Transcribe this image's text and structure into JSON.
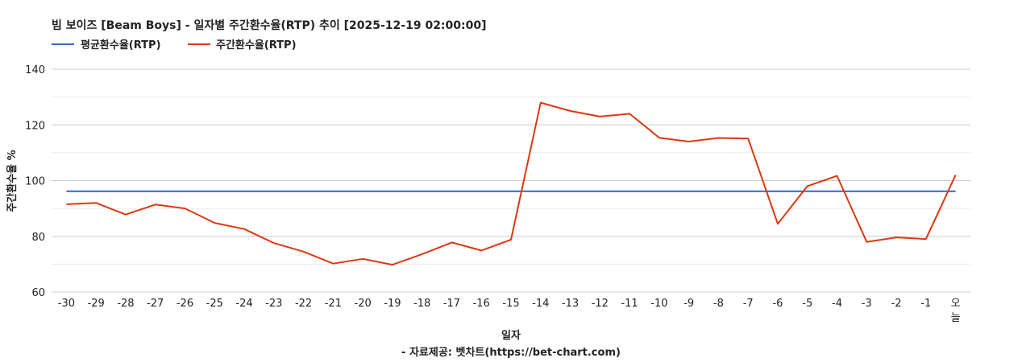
{
  "chart_data": {
    "type": "line",
    "title": "빔 보이즈 [Beam Boys] - 일자별 주간환수율(RTP) 추이 [2025-12-19 02:00:00]",
    "xlabel": "일자",
    "ylabel": "주간환수율 %",
    "footer": "- 자료제공: 벳차트(https://bet-chart.com)",
    "ylim": [
      60,
      140
    ],
    "yticks": [
      60,
      80,
      100,
      120,
      140
    ],
    "grid": true,
    "legend_position": "top-left",
    "categories": [
      "-30",
      "-29",
      "-28",
      "-27",
      "-26",
      "-25",
      "-24",
      "-23",
      "-22",
      "-21",
      "-20",
      "-19",
      "-18",
      "-17",
      "-16",
      "-15",
      "-14",
      "-13",
      "-12",
      "-11",
      "-10",
      "-9",
      "-8",
      "-7",
      "-6",
      "-5",
      "-4",
      "-3",
      "-2",
      "-1",
      "오늘"
    ],
    "series": [
      {
        "name": "평균환수율(RTP)",
        "color": "#3366cc",
        "values": [
          96.2,
          96.2,
          96.2,
          96.2,
          96.2,
          96.2,
          96.2,
          96.2,
          96.2,
          96.2,
          96.2,
          96.2,
          96.2,
          96.2,
          96.2,
          96.2,
          96.2,
          96.2,
          96.2,
          96.2,
          96.2,
          96.2,
          96.2,
          96.2,
          96.2,
          96.2,
          96.2,
          96.2,
          96.2,
          96.2,
          96.2
        ]
      },
      {
        "name": "주간환수율(RTP)",
        "color": "#dc3912",
        "values": [
          91.5,
          92,
          87.8,
          91.4,
          90,
          84.8,
          82.6,
          77.6,
          74.5,
          70.2,
          71.9,
          69.8,
          73.6,
          77.8,
          74.9,
          78.8,
          128,
          125,
          123,
          124,
          115.4,
          114,
          115.3,
          115.1,
          84.5,
          98,
          101.7,
          78,
          79.6,
          79,
          102
        ]
      }
    ]
  }
}
